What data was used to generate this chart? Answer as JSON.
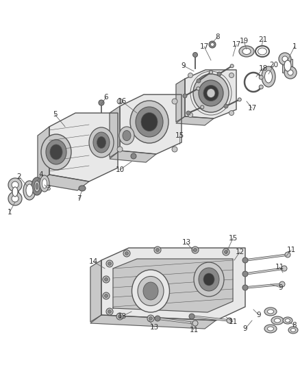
{
  "bg_color": "#ffffff",
  "line_color": "#4a4a4a",
  "label_color": "#333333",
  "fig_width": 4.38,
  "fig_height": 5.33,
  "dpi": 100,
  "stroke": "#555555",
  "fill_light": "#e8e8e8",
  "fill_mid": "#c8c8c8",
  "fill_dark": "#888888",
  "fill_vdark": "#555555"
}
